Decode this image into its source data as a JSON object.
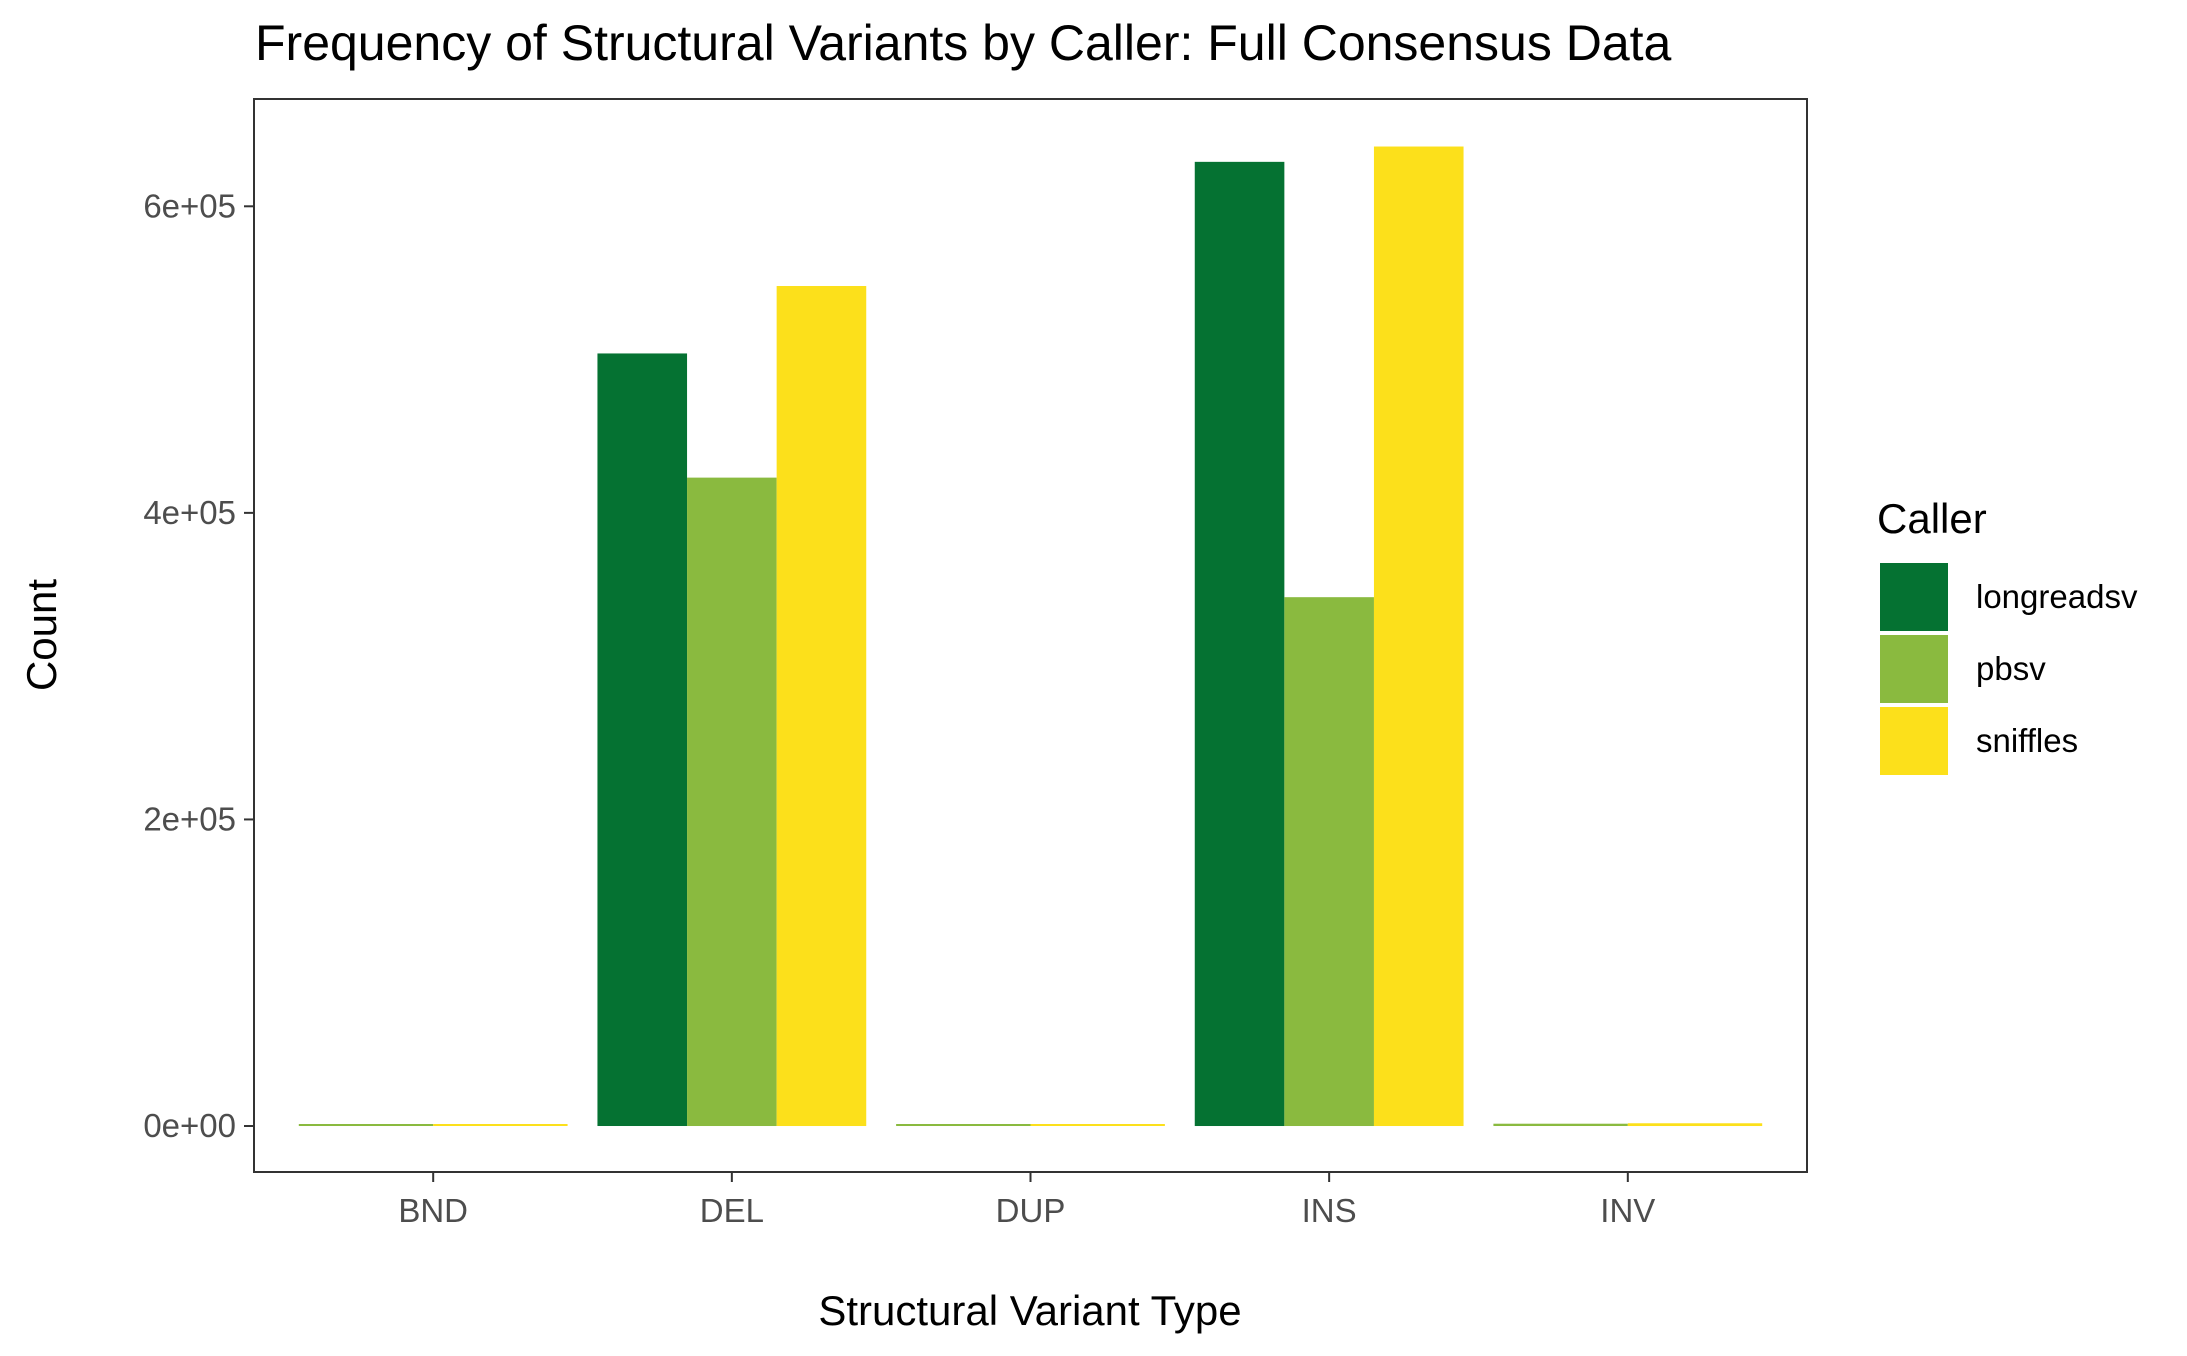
{
  "chart_data": {
    "type": "bar",
    "title": "Frequency of Structural Variants by Caller: Full Consensus Data",
    "xlabel": "Structural Variant Type",
    "ylabel": "Count",
    "categories": [
      "BND",
      "DEL",
      "DUP",
      "INS",
      "INV"
    ],
    "series": [
      {
        "name": "longreadsv",
        "color": "#057232",
        "values": [
          null,
          504000,
          null,
          629000,
          null
        ]
      },
      {
        "name": "pbsv",
        "color": "#8ABA3F",
        "values": [
          500,
          423000,
          1200,
          345000,
          1500
        ]
      },
      {
        "name": "sniffles",
        "color": "#FCE01B",
        "values": [
          400,
          548000,
          600,
          639000,
          1800
        ]
      }
    ],
    "ylim": [
      -30000,
      670000
    ],
    "yticks": [
      0,
      200000,
      400000,
      600000
    ],
    "ytick_labels": [
      "0e+00",
      "2e+05",
      "4e+05",
      "6e+05"
    ],
    "grid": false,
    "legend": {
      "title": "Caller",
      "position": "right"
    }
  }
}
